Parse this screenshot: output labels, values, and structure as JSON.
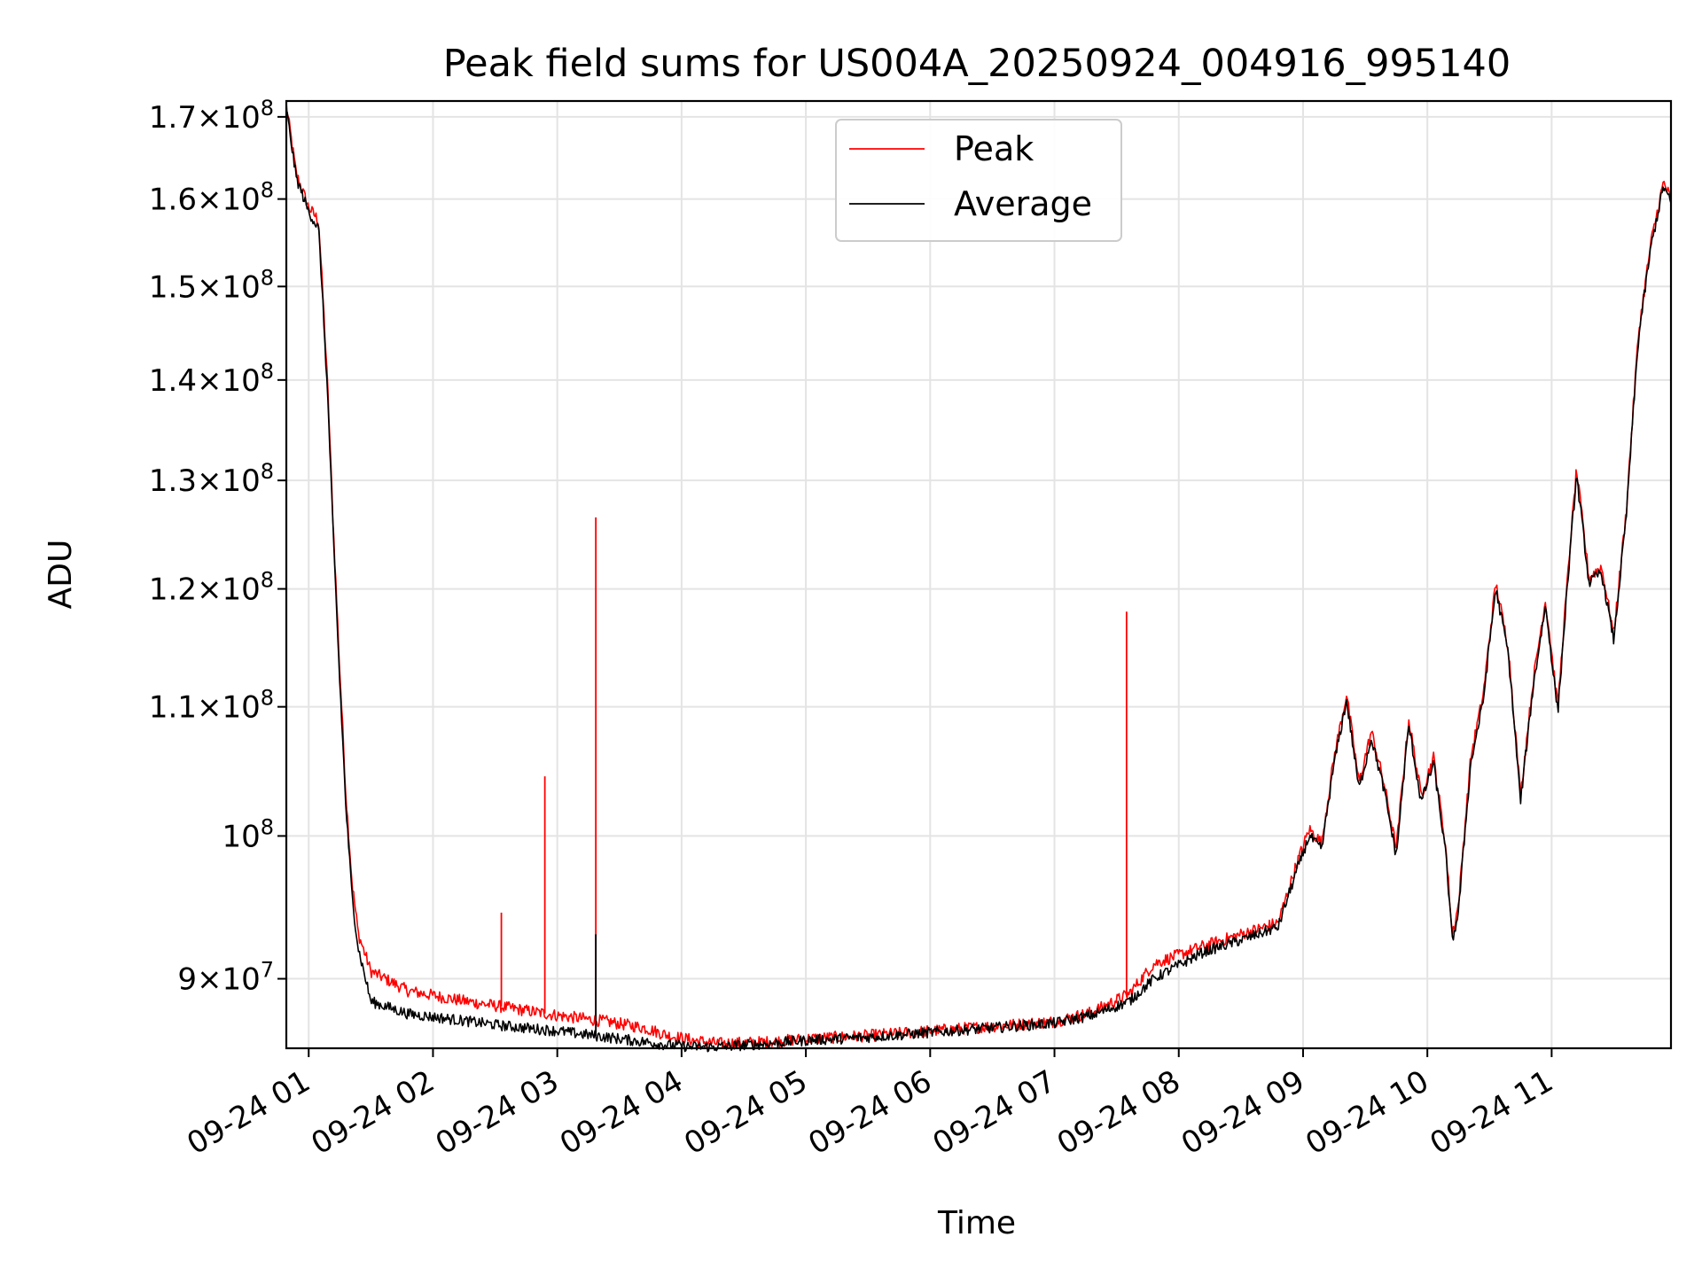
{
  "chart_data": {
    "type": "line",
    "title": "Peak field sums for US004A_20250924_004916_995140",
    "xlabel": "Time",
    "ylabel": "ADU",
    "yscale": "log",
    "ylim": [
      85500000,
      172000000
    ],
    "xlim_hours": [
      0.82,
      11.96
    ],
    "grid": true,
    "legend_position": "upper center",
    "y_ticks": [
      {
        "value": 90000000,
        "mant": "9",
        "exp": "7"
      },
      {
        "value": 100000000,
        "mant": "",
        "exp": "8"
      },
      {
        "value": 110000000,
        "mant": "1.1",
        "exp": "8"
      },
      {
        "value": 120000000,
        "mant": "1.2",
        "exp": "8"
      },
      {
        "value": 130000000,
        "mant": "1.3",
        "exp": "8"
      },
      {
        "value": 140000000,
        "mant": "1.4",
        "exp": "8"
      },
      {
        "value": 150000000,
        "mant": "1.5",
        "exp": "8"
      },
      {
        "value": 160000000,
        "mant": "1.6",
        "exp": "8"
      },
      {
        "value": 170000000,
        "mant": "1.7",
        "exp": "8"
      }
    ],
    "x_ticks": [
      {
        "hour": 1,
        "label": "09-24 01"
      },
      {
        "hour": 2,
        "label": "09-24 02"
      },
      {
        "hour": 3,
        "label": "09-24 03"
      },
      {
        "hour": 4,
        "label": "09-24 04"
      },
      {
        "hour": 5,
        "label": "09-24 05"
      },
      {
        "hour": 6,
        "label": "09-24 06"
      },
      {
        "hour": 7,
        "label": "09-24 07"
      },
      {
        "hour": 8,
        "label": "09-24 08"
      },
      {
        "hour": 9,
        "label": "09-24 09"
      },
      {
        "hour": 10,
        "label": "09-24 10"
      },
      {
        "hour": 11,
        "label": "09-24 11"
      }
    ],
    "series": [
      {
        "name": "Peak",
        "color": "#ff0000",
        "points": [
          [
            0.82,
            171.5
          ],
          [
            0.9,
            163
          ],
          [
            1.0,
            159
          ],
          [
            1.08,
            157.5
          ],
          [
            1.15,
            140
          ],
          [
            1.2,
            125
          ],
          [
            1.25,
            113
          ],
          [
            1.3,
            103
          ],
          [
            1.35,
            96.5
          ],
          [
            1.4,
            93
          ],
          [
            1.5,
            90.5
          ],
          [
            1.8,
            89.2
          ],
          [
            2.2,
            88.6
          ],
          [
            2.6,
            88.1
          ],
          [
            3.0,
            87.6
          ],
          [
            3.4,
            87.2
          ],
          [
            3.7,
            86.8
          ],
          [
            3.9,
            86.3
          ],
          [
            4.1,
            86.0
          ],
          [
            4.3,
            85.8
          ],
          [
            4.7,
            85.9
          ],
          [
            5.0,
            86.1
          ],
          [
            5.5,
            86.3
          ],
          [
            6.0,
            86.6
          ],
          [
            6.5,
            86.9
          ],
          [
            7.0,
            87.2
          ],
          [
            7.3,
            87.8
          ],
          [
            7.6,
            89.0
          ],
          [
            7.8,
            91.0
          ],
          [
            8.2,
            92.2
          ],
          [
            8.5,
            93.0
          ],
          [
            8.8,
            93.8
          ],
          [
            8.95,
            98.0
          ],
          [
            9.05,
            100.5
          ],
          [
            9.15,
            99.5
          ],
          [
            9.25,
            106.0
          ],
          [
            9.35,
            111.0
          ],
          [
            9.45,
            104.0
          ],
          [
            9.55,
            108.0
          ],
          [
            9.65,
            104.0
          ],
          [
            9.75,
            99.0
          ],
          [
            9.85,
            109.0
          ],
          [
            9.95,
            103.0
          ],
          [
            10.05,
            106.0
          ],
          [
            10.15,
            99.0
          ],
          [
            10.2,
            93.0
          ],
          [
            10.25,
            95.0
          ],
          [
            10.35,
            106.0
          ],
          [
            10.45,
            111.0
          ],
          [
            10.55,
            120.5
          ],
          [
            10.65,
            115.0
          ],
          [
            10.75,
            103.0
          ],
          [
            10.85,
            112.0
          ],
          [
            10.95,
            119.0
          ],
          [
            11.05,
            110.0
          ],
          [
            11.15,
            124.0
          ],
          [
            11.2,
            131.0
          ],
          [
            11.3,
            121.0
          ],
          [
            11.4,
            122.0
          ],
          [
            11.5,
            116.0
          ],
          [
            11.6,
            127.0
          ],
          [
            11.7,
            145.0
          ],
          [
            11.8,
            155.0
          ],
          [
            11.9,
            162.0
          ],
          [
            11.96,
            160.0
          ]
        ],
        "spikes": [
          [
            2.55,
            94.5
          ],
          [
            2.9,
            104.5
          ],
          [
            3.31,
            126.5
          ],
          [
            7.58,
            118.0
          ]
        ]
      },
      {
        "name": "Average",
        "color": "#000000",
        "points": [
          [
            0.82,
            171.0
          ],
          [
            0.9,
            162.5
          ],
          [
            1.0,
            158.5
          ],
          [
            1.08,
            156.5
          ],
          [
            1.15,
            139
          ],
          [
            1.2,
            124
          ],
          [
            1.25,
            112
          ],
          [
            1.3,
            102
          ],
          [
            1.35,
            95.5
          ],
          [
            1.4,
            92
          ],
          [
            1.5,
            88.5
          ],
          [
            1.8,
            87.7
          ],
          [
            2.2,
            87.3
          ],
          [
            2.6,
            86.9
          ],
          [
            3.0,
            86.6
          ],
          [
            3.4,
            86.2
          ],
          [
            3.7,
            85.9
          ],
          [
            3.9,
            85.7
          ],
          [
            4.1,
            85.6
          ],
          [
            4.3,
            85.6
          ],
          [
            4.7,
            85.8
          ],
          [
            5.0,
            86.0
          ],
          [
            5.5,
            86.2
          ],
          [
            6.0,
            86.5
          ],
          [
            6.5,
            86.8
          ],
          [
            7.0,
            87.1
          ],
          [
            7.3,
            87.6
          ],
          [
            7.6,
            88.5
          ],
          [
            7.8,
            90.0
          ],
          [
            8.2,
            91.8
          ],
          [
            8.5,
            92.6
          ],
          [
            8.8,
            93.5
          ],
          [
            8.95,
            97.5
          ],
          [
            9.05,
            100.0
          ],
          [
            9.15,
            99.0
          ],
          [
            9.25,
            105.5
          ],
          [
            9.35,
            110.5
          ],
          [
            9.45,
            103.5
          ],
          [
            9.55,
            107.5
          ],
          [
            9.65,
            103.5
          ],
          [
            9.75,
            98.5
          ],
          [
            9.85,
            108.5
          ],
          [
            9.95,
            102.5
          ],
          [
            10.05,
            105.5
          ],
          [
            10.15,
            98.5
          ],
          [
            10.2,
            92.5
          ],
          [
            10.25,
            94.5
          ],
          [
            10.35,
            105.5
          ],
          [
            10.45,
            110.5
          ],
          [
            10.55,
            120.0
          ],
          [
            10.65,
            114.5
          ],
          [
            10.75,
            102.5
          ],
          [
            10.85,
            111.5
          ],
          [
            10.95,
            118.5
          ],
          [
            11.05,
            109.5
          ],
          [
            11.15,
            123.5
          ],
          [
            11.2,
            130.5
          ],
          [
            11.3,
            120.5
          ],
          [
            11.4,
            121.5
          ],
          [
            11.5,
            115.5
          ],
          [
            11.6,
            126.5
          ],
          [
            11.7,
            144.5
          ],
          [
            11.8,
            154.5
          ],
          [
            11.9,
            161.5
          ],
          [
            11.96,
            159.5
          ]
        ],
        "spikes": [
          [
            3.31,
            93.0
          ]
        ]
      }
    ]
  }
}
